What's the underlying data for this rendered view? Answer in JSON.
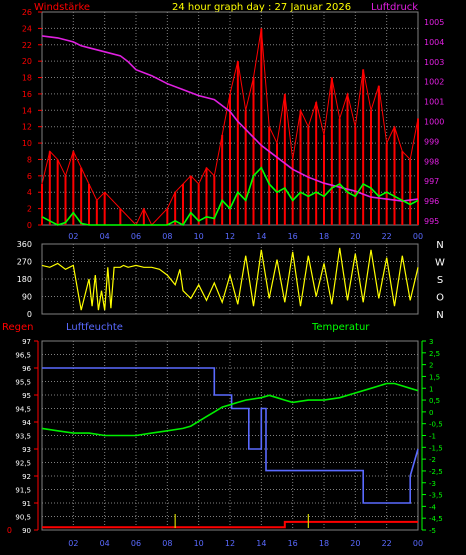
{
  "header": {
    "wind_label": "Windstärke",
    "title": "24 hour graph day : 27 Januar 2026",
    "pressure_label": "Luftdruck"
  },
  "lower_header": {
    "rain_label": "Regen",
    "humidity_label": "Luftfeuchte",
    "temperature_label": "Temperatur"
  },
  "colors": {
    "background": "#000000",
    "grid": "#808080",
    "wind": "#ff0000",
    "gust": "#00ff00",
    "pressure": "#e020e0",
    "direction": "#ffff00",
    "humidity": "#5a6aff",
    "temperature": "#00ee00",
    "rain": "#ff0000",
    "rain_marker": "#d4d400",
    "axis_left": "#ff0000",
    "axis_right_pressure": "#e020e0",
    "axis_right_temp": "#00ff00",
    "axis_humidity": "#ffffff",
    "time_label": "#5a6aff"
  },
  "chart_data": [
    {
      "type": "line",
      "name": "wind-pressure",
      "x_ticks": [
        "02",
        "04",
        "06",
        "08",
        "10",
        "12",
        "14",
        "16",
        "18",
        "20",
        "22",
        "00"
      ],
      "y_left_ticks": [
        0,
        2,
        4,
        6,
        8,
        10,
        12,
        14,
        16,
        18,
        20,
        22,
        24,
        26
      ],
      "y_left_range": [
        0,
        26
      ],
      "y_right_ticks": [
        995,
        996,
        997,
        998,
        999,
        1000,
        1001,
        1002,
        1003,
        1004,
        1005
      ],
      "y_right_range": [
        994.8,
        1005.5
      ],
      "x_range": [
        0,
        24
      ],
      "grid": true,
      "series": [
        {
          "role": "pressure",
          "axis": "right",
          "x": [
            0,
            1,
            2,
            2.5,
            3,
            4,
            5,
            5.5,
            6,
            7,
            8,
            9,
            10,
            11,
            11.5,
            12,
            12.5,
            13,
            13.5,
            14,
            15,
            16,
            17,
            18,
            19,
            20,
            21,
            22,
            23,
            24
          ],
          "y": [
            1004.3,
            1004.2,
            1004.0,
            1003.8,
            1003.7,
            1003.5,
            1003.3,
            1003.0,
            1002.6,
            1002.3,
            1001.9,
            1001.6,
            1001.3,
            1001.1,
            1000.8,
            1000.5,
            1000.0,
            999.6,
            999.2,
            998.8,
            998.2,
            997.6,
            997.2,
            996.9,
            996.7,
            996.5,
            996.2,
            996.1,
            996.0,
            996.1
          ]
        },
        {
          "role": "gust",
          "axis": "left",
          "x": [
            0,
            0.5,
            1,
            1.5,
            2,
            2.5,
            3,
            3.5,
            4,
            5,
            6,
            6.5,
            7,
            8,
            8.5,
            9,
            9.5,
            10,
            10.5,
            11,
            11.5,
            12,
            12.5,
            13,
            13.5,
            14,
            14.5,
            15,
            15.5,
            16,
            16.5,
            17,
            17.5,
            18,
            18.5,
            19,
            19.5,
            20,
            20.5,
            21,
            21.5,
            22,
            22.5,
            23,
            23.5,
            24
          ],
          "y": [
            1,
            0.5,
            0,
            0.3,
            1.5,
            0.2,
            0,
            0,
            0,
            0,
            0,
            0,
            0,
            0,
            0.5,
            0,
            1.5,
            0.5,
            1,
            0.8,
            3,
            2,
            4,
            3,
            6,
            7,
            5,
            4,
            4.5,
            3,
            4,
            3.5,
            4,
            3.5,
            4.5,
            5,
            4,
            3.5,
            5,
            4.5,
            3.5,
            4,
            3.5,
            3,
            2.5,
            3
          ]
        },
        {
          "role": "wind",
          "axis": "left",
          "x": [
            0,
            0.5,
            1,
            1.5,
            2,
            2.5,
            3,
            3.5,
            4,
            5,
            6,
            6.5,
            7,
            8,
            8.5,
            9,
            9.5,
            10,
            10.5,
            11,
            11.5,
            12,
            12.5,
            13,
            13.5,
            14,
            14.5,
            15,
            15.5,
            16,
            16.5,
            17,
            17.5,
            18,
            18.5,
            19,
            19.5,
            20,
            20.5,
            21,
            21.5,
            22,
            22.5,
            23,
            23.5,
            24
          ],
          "y": [
            5,
            9,
            8,
            6,
            9,
            7,
            5,
            3,
            4,
            2,
            0,
            2,
            0,
            2,
            4,
            5,
            6,
            5,
            7,
            6,
            11,
            16,
            20,
            14,
            18,
            24,
            12,
            10,
            16,
            8,
            14,
            12,
            15,
            11,
            18,
            13,
            16,
            12,
            19,
            14,
            17,
            10,
            12,
            9,
            8,
            13
          ]
        }
      ]
    },
    {
      "type": "line",
      "name": "wind-direction",
      "y_ticks": [
        0,
        90,
        180,
        270,
        360
      ],
      "y_range": [
        0,
        360
      ],
      "x_range": [
        0,
        24
      ],
      "compass_labels": [
        "N",
        "W",
        "S",
        "O",
        "N"
      ],
      "grid": true,
      "series": [
        {
          "role": "direction",
          "x": [
            0,
            0.5,
            1,
            1.5,
            2,
            2.5,
            3,
            3.2,
            3.4,
            3.6,
            3.8,
            4,
            4.2,
            4.4,
            4.6,
            5,
            5.2,
            5.5,
            6,
            6.5,
            7,
            7.5,
            8,
            8.5,
            8.8,
            9,
            9.5,
            10,
            10.5,
            11,
            11.5,
            12,
            12.5,
            13,
            13.5,
            14,
            14.5,
            15,
            15.5,
            16,
            16.5,
            17,
            17.5,
            18,
            18.5,
            19,
            19.5,
            20,
            20.5,
            21,
            21.5,
            22,
            22.5,
            23,
            23.5,
            24
          ],
          "y": [
            250,
            240,
            260,
            230,
            250,
            20,
            180,
            40,
            200,
            20,
            120,
            20,
            240,
            30,
            240,
            240,
            250,
            240,
            250,
            240,
            240,
            230,
            200,
            150,
            230,
            120,
            80,
            150,
            70,
            160,
            60,
            200,
            50,
            300,
            40,
            330,
            80,
            280,
            60,
            320,
            40,
            300,
            90,
            260,
            50,
            340,
            70,
            310,
            60,
            330,
            80,
            290,
            40,
            300,
            70,
            240
          ]
        }
      ]
    },
    {
      "type": "line",
      "name": "rain-humidity-temperature",
      "x_ticks": [
        "02",
        "04",
        "06",
        "08",
        "10",
        "12",
        "14",
        "16",
        "18",
        "20",
        "22",
        "00"
      ],
      "y_left_ticks": [
        0,
        1,
        2,
        3,
        4,
        5,
        6,
        7
      ],
      "y_left_range": [
        0,
        7
      ],
      "y_humidity_ticks": [
        90,
        90.5,
        91,
        91.5,
        92,
        92.5,
        93,
        93.5,
        94,
        94.5,
        95,
        95.5,
        96,
        96.5,
        97
      ],
      "y_humidity_range": [
        90,
        97
      ],
      "y_right_ticks": [
        -5,
        -4.5,
        -4,
        -3.5,
        -3,
        -2.5,
        -2,
        -1.5,
        -1,
        -0.5,
        0,
        0.5,
        1,
        1.5,
        2,
        2.5,
        3
      ],
      "y_right_range": [
        -5,
        3
      ],
      "x_range": [
        0,
        24
      ],
      "grid": true,
      "series": [
        {
          "role": "humidity",
          "axis": "humidity",
          "x": [
            0,
            11,
            11,
            12.1,
            12.1,
            13.2,
            13.2,
            14,
            14,
            14.3,
            14.3,
            15.2,
            15.2,
            20.5,
            20.5,
            22.8,
            22.8,
            23.5,
            23.5,
            24
          ],
          "y": [
            96,
            96,
            95,
            95,
            94.5,
            94.5,
            93,
            93,
            94.5,
            94.5,
            92.2,
            92.2,
            92.2,
            92.2,
            91,
            91,
            91,
            91,
            92,
            93
          ]
        },
        {
          "role": "temperature",
          "axis": "right",
          "x": [
            0,
            1,
            2,
            3,
            4,
            5,
            6,
            7,
            8,
            9,
            9.5,
            10,
            10.5,
            11,
            11.5,
            12,
            12.5,
            13,
            14,
            14.5,
            15,
            15.5,
            16,
            17,
            18,
            19,
            20,
            21,
            22,
            22.5,
            23,
            23.5,
            24
          ],
          "y": [
            -0.7,
            -0.8,
            -0.9,
            -0.9,
            -1.0,
            -1.0,
            -1.0,
            -0.9,
            -0.8,
            -0.7,
            -0.6,
            -0.4,
            -0.2,
            0.0,
            0.2,
            0.3,
            0.4,
            0.5,
            0.6,
            0.7,
            0.6,
            0.5,
            0.4,
            0.5,
            0.5,
            0.6,
            0.8,
            1.0,
            1.2,
            1.2,
            1.1,
            1.0,
            0.9
          ]
        },
        {
          "role": "rain",
          "axis": "left",
          "x": [
            0,
            15.5,
            15.5,
            24
          ],
          "y": [
            0.1,
            0.1,
            0.3,
            0.3
          ]
        }
      ]
    }
  ]
}
